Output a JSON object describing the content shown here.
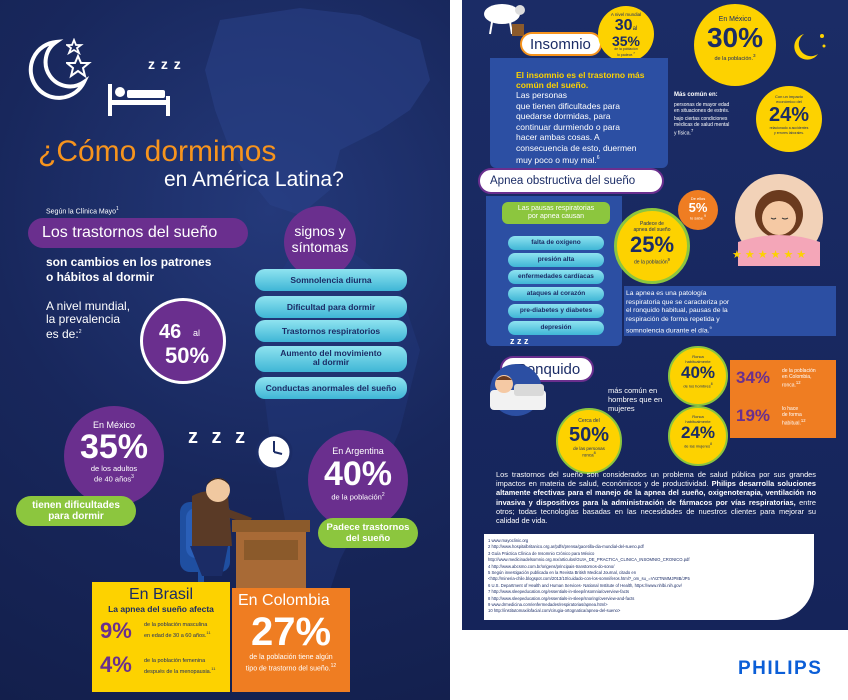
{
  "left": {
    "title_line1": "¿Cómo dormimos",
    "title_line2": "en América Latina?",
    "source": "Según la Clínica Mayo",
    "source_ref": "1",
    "sleep_disorders": "Los trastornos del sueño",
    "causes": "son cambios en los patrones\no hábitos al dormir",
    "prevalence": "A nivel mundial,\nla prevalencia\nes de:",
    "prevalence_ref": "2",
    "prevalence_from": "46",
    "prevalence_al": "al",
    "prevalence_to": "50%",
    "signs_title": "signos y\nsíntomas",
    "signs": [
      "Somnolencia diurna",
      "Dificultad para dormir",
      "Trastornos respiratorios",
      "Aumento del movimiento\nal dormir",
      "Conductas anormales del sueño"
    ],
    "zzz": "z z z",
    "mexico": {
      "label": "En México",
      "value": "35%",
      "desc": "de los adultos\nde 40 años",
      "ref": "3",
      "tag": "tienen dificultades\npara dormir"
    },
    "argentina": {
      "label": "En Argentina",
      "value": "40%",
      "desc": "de la población",
      "ref": "2",
      "tag": "Padece trastornos\ndel sueño"
    },
    "brasil": {
      "label": "En Brasil",
      "sub": "La apnea del sueño afecta",
      "v1": "9%",
      "d1": "de la población masculina\nen edad de 30 a 60 años.",
      "r1": "11",
      "v2": "4%",
      "d2": "de la población femenina\ndespués de la menopausia.",
      "r2": "11"
    },
    "colombia": {
      "label": "En Colombia",
      "value": "27%",
      "desc": "de la población tiene algún\ntipo de trastorno del sueño.",
      "ref": "12"
    }
  },
  "right": {
    "insomnio": {
      "title": "Insomnio",
      "world_pre": "A nivel mundial",
      "world_value": "30",
      "world_al": "al",
      "world_value2": "35%",
      "world_post": "de la población\nlo padece.",
      "world_ref": "7",
      "lead": "El insomnio es el trastorno más\ncomún del sueño.",
      "body": "Las personas\nque tienen dificultades para\nquedarse dormidas, para\ncontinuar durmiendo o para\nhacer ambas cosas. A\nconsecuencia de esto, duermen\nmuy poco o muy mal.",
      "body_ref": "6",
      "mx_label": "En México",
      "mx_value": "30%",
      "mx_desc": "de la población.",
      "mx_ref": "3",
      "common_title": "Más común en:",
      "common_items": [
        "personas de mayor edad\nen situaciones de estrés.",
        "bajo ciertas condiciones\nmédicas de salud mental\ny física."
      ],
      "common_ref": "7",
      "impact_pre": "Con un impacto\neconómico del",
      "impact_value": "24%",
      "impact_post": "relacionado a accidentes\ny errores laborales."
    },
    "apnea": {
      "title": "Apnea obstructiva del sueño",
      "pauses": "Las pausas respiratorias\npor apnea causan",
      "effects": [
        "falta de oxígeno",
        "presión alta",
        "enfermedades cardíacas",
        "ataques al corazón",
        "pre-diabetes y diabetes",
        "depresión"
      ],
      "suffer_pre": "Padece de\napnea del sueño",
      "suffer_value": "25%",
      "suffer_post": "de la población",
      "suffer_ref": "9",
      "unaware_pre": "De ellos",
      "unaware_value": "5%",
      "unaware_post": "lo sabe.",
      "unaware_ref": "9",
      "desc": "La apnea es una patología\nrespiratoria que se caracteriza por\nel ronquido habitual, pausas de la\nrespiración de forma repetida y\nsomnolencia durante el día.",
      "desc_ref": "9"
    },
    "ronquido": {
      "title": "Ronquido",
      "zzz": "z z z",
      "men": "más común en\nhombres que en\nmujeres",
      "near_pre": "Cerca del",
      "near_value": "50%",
      "near_post": "de las personas\nronca",
      "near_ref": "8",
      "h_pre": "Ronca\nhabitualmente",
      "h_value": "40%",
      "h_post": "de los hombres",
      "h_ref": "8",
      "m_pre": "Ronca\nhabitualmente",
      "m_value": "24%",
      "m_post": "de las mujeres",
      "m_ref": "8",
      "col1_value": "34%",
      "col1_desc": "de la población\nen Colombia,\nronca.",
      "col1_ref": "12",
      "col2_value": "19%",
      "col2_desc": "lo hace\nde forma\nhabitual.",
      "col2_ref": "12"
    },
    "summary_plain": "Los trastornos del sueño son considerados un problema de salud pública por sus grandes impactos en materia de salud, económicos y de productividad.",
    "summary_bold": "Philips desarrolla soluciones altamente efectivas para el manejo de la apnea del sueño, oxigenoterapia, ventilación no invasiva y dispositivos para la administración de fármacos por vías respiratorias,",
    "summary_end": "entre otros; todas tecnologías basadas en las necesidades de nuestros clientes para mejorar su calidad de vida.",
    "footnotes": [
      "1 www.mayoclinic.org",
      "2 http://www.hospitalbritanico.org.ar/pdfs/prensa/gacetilla-dia-mundial-del-sueno.pdf",
      "3 Guía Práctica Clínica de Insomnio Crónico para México",
      "http://www.medicinadelsomnio.org.mx/articulos/GUIA_DE_PRACTICA_CLINICA_INSOMNIO_CRONICO.pdf",
      "4 http://www.abcsmo.com.br/origens/principais-transtornos-do-sono/",
      "5 Según investigación publicada en la Revista British Medical Journal, citado en",
      "<http://mineria-chile.blogspot.com/2013/10/cuidado-con-los-somniferos.html?_om_su_=VVZTNMMJP8B/JP5",
      "6 U.S. Department of Health and Human Services- National Institute of Health, https://www.nhlbi.nih.gov/",
      "7 http://www.sleepeducation.org/essentials-in-sleep/insomnia/overview-facts",
      "8 http://www.sleepeducation.org/essentials-in-sleep/snoring/overview-and-facts",
      "9 www.drmedicina.com/enfermedades/respiratorias/apnea.html>",
      "10 http://institutomaxilofacial.com/cirugia-ortognatica/apnea-del-sueno>"
    ],
    "brand": "PHILIPS"
  },
  "colors": {
    "navy": "#1b2c66",
    "orange": "#f7941d",
    "purple": "#6a2f8e",
    "cyan": "#54c3de",
    "green": "#8cc63e",
    "yellow": "#fdd200",
    "brand": "#0b5ed7"
  }
}
